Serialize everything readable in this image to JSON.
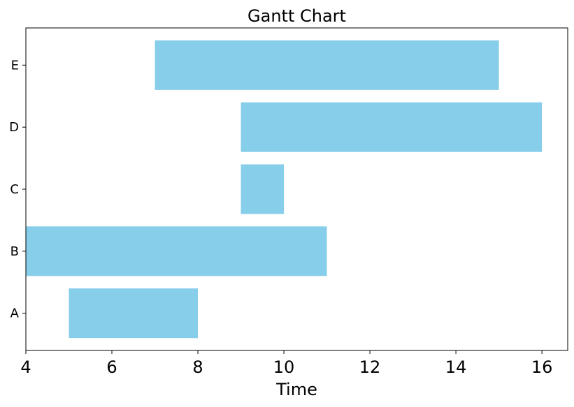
{
  "chart_data": {
    "type": "bar",
    "orientation": "horizontal",
    "title": "Gantt Chart",
    "xlabel": "Time",
    "ylabel": "",
    "xlim": [
      4,
      16.6
    ],
    "xticks": [
      4,
      6,
      8,
      10,
      12,
      14,
      16
    ],
    "xtick_labels": [
      "4",
      "6",
      "8",
      "10",
      "12",
      "14",
      "16"
    ],
    "categories": [
      "A",
      "B",
      "C",
      "D",
      "E"
    ],
    "tasks": [
      {
        "name": "A",
        "start": 5,
        "end": 8
      },
      {
        "name": "B",
        "start": 4,
        "end": 11
      },
      {
        "name": "C",
        "start": 9,
        "end": 10
      },
      {
        "name": "D",
        "start": 9,
        "end": 16
      },
      {
        "name": "E",
        "start": 7,
        "end": 15
      }
    ],
    "bar_color": "#87ceeb",
    "grid": false,
    "legend": "none"
  }
}
